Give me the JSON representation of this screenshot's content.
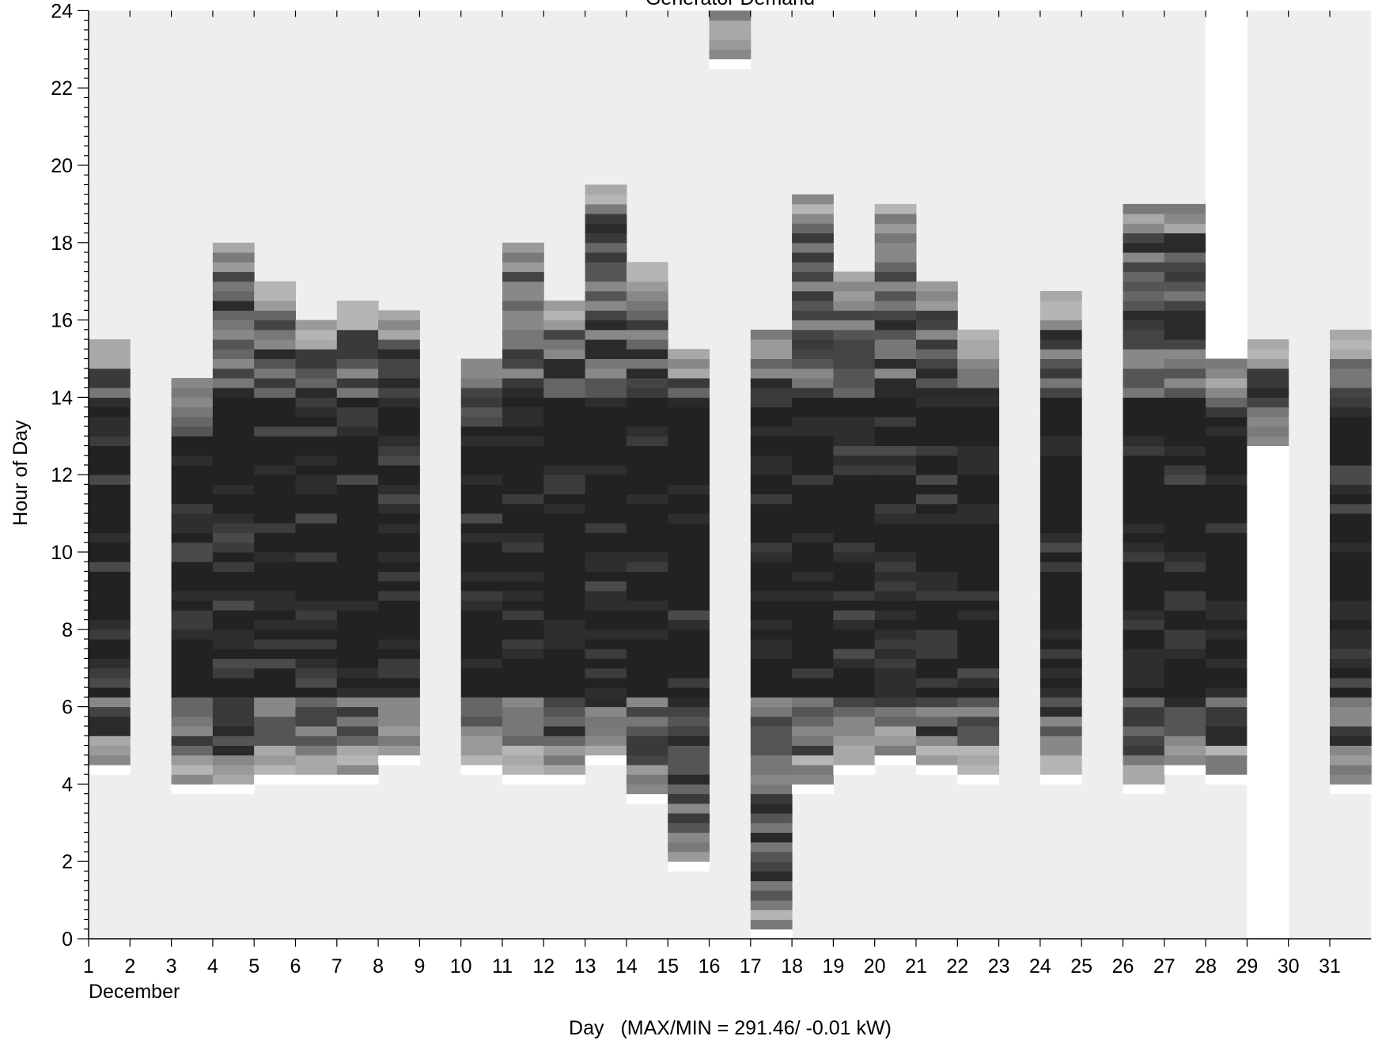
{
  "chart_data": {
    "type": "heatmap",
    "title": "Generator Demand",
    "xlabel": "Day",
    "xlabel_suffix": "(MAX/MIN =     291.46/  -0.01 kW)",
    "ylabel": "Hour of Day",
    "month_label": "December",
    "xlim": [
      1,
      32
    ],
    "ylim": [
      0,
      24
    ],
    "x_ticks": [
      "1",
      "2",
      "3",
      "4",
      "5",
      "6",
      "7",
      "8",
      "9",
      "10",
      "11",
      "12",
      "13",
      "14",
      "15",
      "16",
      "17",
      "18",
      "19",
      "20",
      "21",
      "22",
      "23",
      "24",
      "25",
      "26",
      "27",
      "28",
      "29",
      "30",
      "31"
    ],
    "y_ticks": [
      "0",
      "2",
      "4",
      "6",
      "8",
      "10",
      "12",
      "14",
      "16",
      "18",
      "20",
      "22",
      "24"
    ],
    "max_kW": 291.46,
    "min_kW": -0.01,
    "colors": {
      "background": "#eeeeee",
      "no_data": "#ffffff",
      "dark": "#222222"
    },
    "columns": [
      {
        "day": 1,
        "start": 4.25,
        "end": 15.5
      },
      {
        "day": 3,
        "start": 3.75,
        "end": 14.5
      },
      {
        "day": 4,
        "start": 3.75,
        "end": 18.0
      },
      {
        "day": 5,
        "start": 4.0,
        "end": 17.0
      },
      {
        "day": 6,
        "start": 4.0,
        "end": 16.0
      },
      {
        "day": 7,
        "start": 4.0,
        "end": 16.5
      },
      {
        "day": 8,
        "start": 4.5,
        "end": 16.25
      },
      {
        "day": 10,
        "start": 4.25,
        "end": 15.0
      },
      {
        "day": 11,
        "start": 4.0,
        "end": 18.0
      },
      {
        "day": 12,
        "start": 4.0,
        "end": 16.5
      },
      {
        "day": 13,
        "start": 4.5,
        "end": 19.5
      },
      {
        "day": 14,
        "start": 3.5,
        "end": 17.5
      },
      {
        "day": 15,
        "start": 1.75,
        "end": 15.25
      },
      {
        "day": 16,
        "start": 22.5,
        "end": 24.0
      },
      {
        "day": 17,
        "start": 0.0,
        "end": 15.75
      },
      {
        "day": 18,
        "start": 3.75,
        "end": 19.25
      },
      {
        "day": 19,
        "start": 4.25,
        "end": 17.25
      },
      {
        "day": 20,
        "start": 4.5,
        "end": 19.0
      },
      {
        "day": 21,
        "start": 4.25,
        "end": 17.0
      },
      {
        "day": 22,
        "start": 4.0,
        "end": 15.75
      },
      {
        "day": 24,
        "start": 4.0,
        "end": 16.75
      },
      {
        "day": 26,
        "start": 3.75,
        "end": 19.0
      },
      {
        "day": 27,
        "start": 4.25,
        "end": 19.0
      },
      {
        "day": 28,
        "start": 4.0,
        "end": 15.0
      },
      {
        "day": 29,
        "start": 12.5,
        "end": 15.5
      },
      {
        "day": 31,
        "start": 3.75,
        "end": 15.75
      }
    ],
    "no_data_columns": [
      {
        "day": 28,
        "start": 15.0,
        "end": 24.0
      },
      {
        "day": 29,
        "start": 0.0,
        "end": 12.5
      }
    ]
  }
}
